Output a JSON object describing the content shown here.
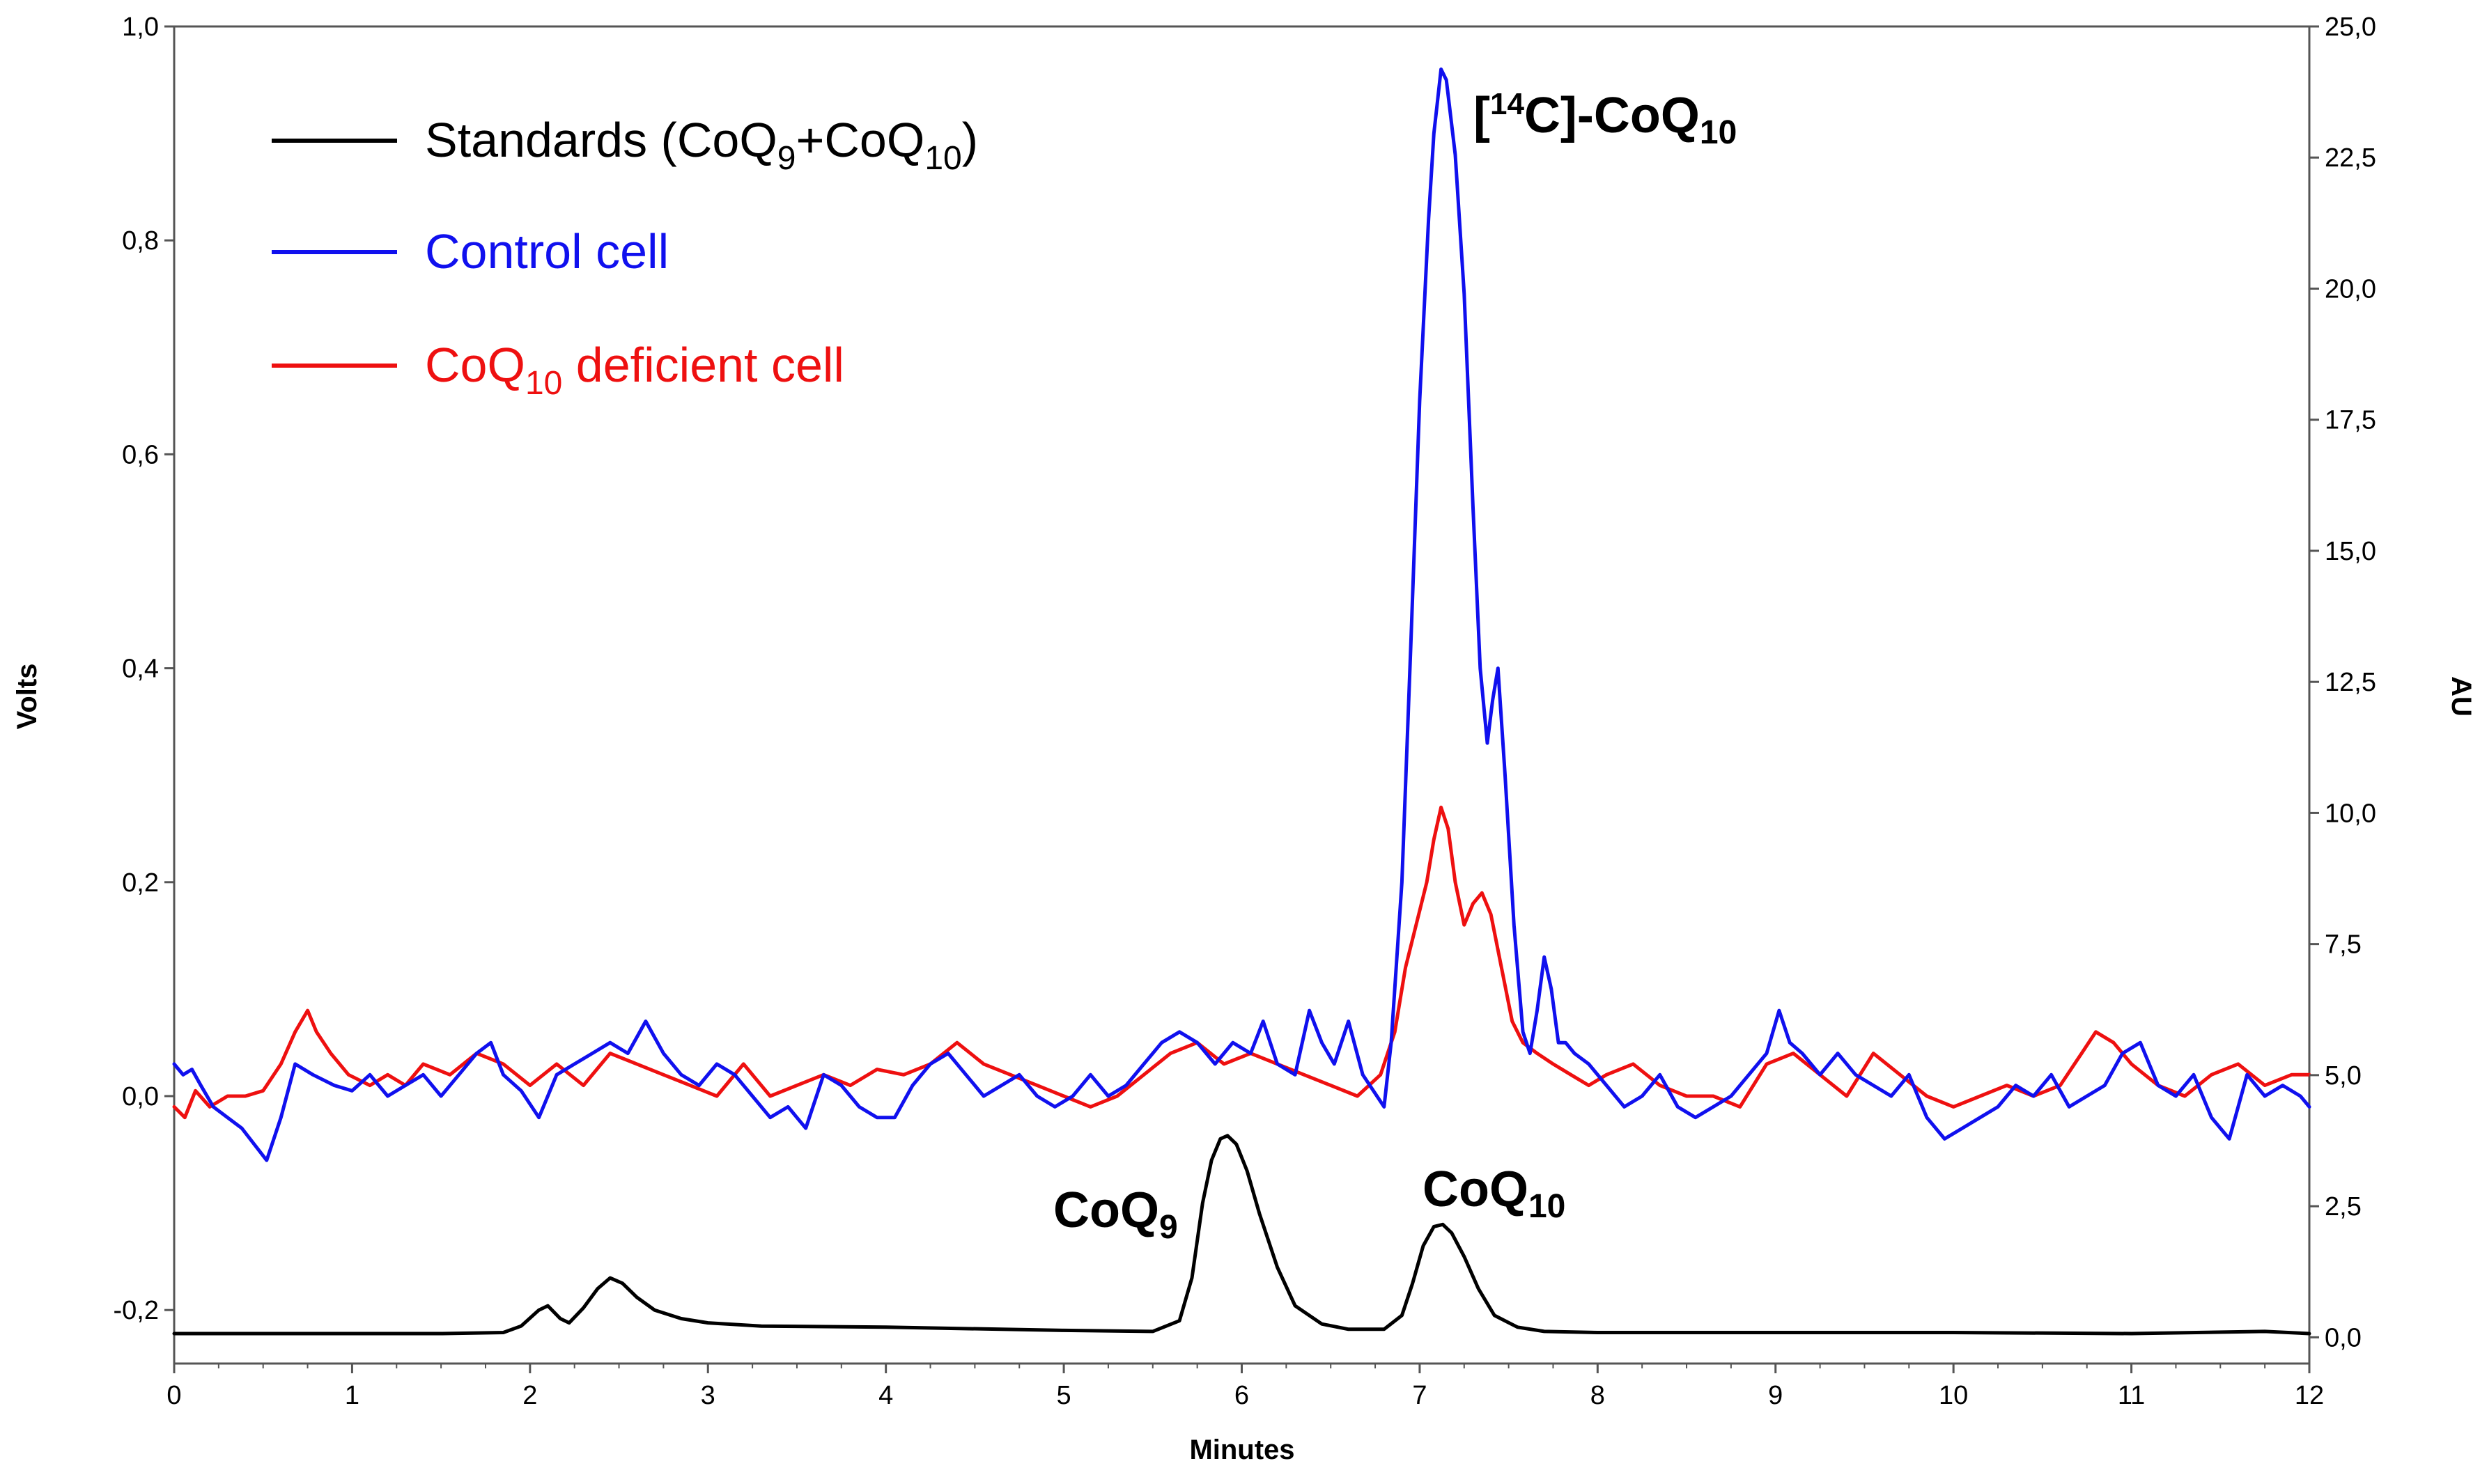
{
  "chart_data": {
    "type": "line",
    "title": "",
    "xlabel": "Minutes",
    "ylabel_left": "Volts",
    "ylabel_right": "AU",
    "xlim": [
      0,
      12
    ],
    "ylim_left": [
      -0.25,
      1.0
    ],
    "ylim_right": [
      -0.5,
      25.0
    ],
    "grid": false,
    "legend_placement": "top-left",
    "x_ticks": [
      "0",
      "1",
      "2",
      "3",
      "4",
      "5",
      "6",
      "7",
      "8",
      "9",
      "10",
      "11",
      "12"
    ],
    "y_left_ticks": [
      "1,0",
      "0,8",
      "0,6",
      "0,4",
      "0,2",
      "0,0",
      "-0,2"
    ],
    "y_left_tick_values": [
      1.0,
      0.8,
      0.6,
      0.4,
      0.2,
      0.0,
      -0.2
    ],
    "y_right_ticks": [
      "25,0",
      "22,5",
      "20,0",
      "17,5",
      "15,0",
      "12,5",
      "10,0",
      "7,5",
      "5,0",
      "2,5",
      "0,0"
    ],
    "y_right_tick_values": [
      25.0,
      22.5,
      20.0,
      17.5,
      15.0,
      12.5,
      10.0,
      7.5,
      5.0,
      2.5,
      0.0
    ],
    "legend": [
      {
        "id": "standards",
        "name": "Standards (CoQ",
        "sub1": "9",
        "mid": "+CoQ",
        "sub2": "10",
        "end": ")",
        "color": "#000000"
      },
      {
        "id": "control",
        "name": "Control cell",
        "color": "#1010ee"
      },
      {
        "id": "deficient",
        "name": "CoQ",
        "sub1": "10",
        "end": " deficient cell",
        "color": "#ee1010"
      }
    ],
    "annotations": {
      "c14": {
        "pre": "[",
        "sup": "14",
        "mid": "C]-CoQ",
        "sub": "10"
      },
      "coq9": {
        "text": "CoQ",
        "sub": "9"
      },
      "coq10": {
        "text": "CoQ",
        "sub": "10"
      }
    },
    "series": [
      {
        "name": "Standards (CoQ9+CoQ10)",
        "axis": "left",
        "color": "#000000",
        "x": [
          0.0,
          0.5,
          1.0,
          1.5,
          1.85,
          1.95,
          2.05,
          2.1,
          2.17,
          2.22,
          2.3,
          2.38,
          2.45,
          2.52,
          2.6,
          2.7,
          2.85,
          3.0,
          3.3,
          4.0,
          5.0,
          5.5,
          5.65,
          5.72,
          5.78,
          5.83,
          5.88,
          5.92,
          5.97,
          6.03,
          6.1,
          6.2,
          6.3,
          6.45,
          6.6,
          6.8,
          6.9,
          6.96,
          7.02,
          7.08,
          7.13,
          7.18,
          7.25,
          7.33,
          7.42,
          7.55,
          7.7,
          8.0,
          9.0,
          10.0,
          11.0,
          11.75,
          12.0
        ],
        "y": [
          -0.222,
          -0.222,
          -0.222,
          -0.222,
          -0.221,
          -0.215,
          -0.2,
          -0.196,
          -0.208,
          -0.212,
          -0.198,
          -0.18,
          -0.17,
          -0.175,
          -0.188,
          -0.2,
          -0.208,
          -0.212,
          -0.215,
          -0.216,
          -0.219,
          -0.22,
          -0.21,
          -0.17,
          -0.1,
          -0.06,
          -0.04,
          -0.037,
          -0.045,
          -0.07,
          -0.11,
          -0.16,
          -0.196,
          -0.213,
          -0.218,
          -0.218,
          -0.205,
          -0.175,
          -0.14,
          -0.122,
          -0.12,
          -0.128,
          -0.15,
          -0.18,
          -0.205,
          -0.216,
          -0.22,
          -0.221,
          -0.221,
          -0.221,
          -0.222,
          -0.22,
          -0.222
        ]
      },
      {
        "name": "Control cell",
        "axis": "left",
        "color": "#1010ee",
        "x": [
          0.0,
          0.05,
          0.1,
          0.15,
          0.22,
          0.3,
          0.38,
          0.45,
          0.52,
          0.6,
          0.68,
          0.78,
          0.9,
          1.0,
          1.1,
          1.2,
          1.3,
          1.4,
          1.5,
          1.6,
          1.7,
          1.78,
          1.85,
          1.95,
          2.05,
          2.15,
          2.25,
          2.35,
          2.45,
          2.55,
          2.65,
          2.75,
          2.85,
          2.95,
          3.05,
          3.15,
          3.25,
          3.35,
          3.45,
          3.55,
          3.65,
          3.75,
          3.85,
          3.95,
          4.05,
          4.15,
          4.25,
          4.35,
          4.45,
          4.55,
          4.65,
          4.75,
          4.85,
          4.95,
          5.05,
          5.15,
          5.25,
          5.35,
          5.45,
          5.55,
          5.65,
          5.75,
          5.85,
          5.95,
          6.05,
          6.12,
          6.2,
          6.3,
          6.38,
          6.45,
          6.52,
          6.6,
          6.68,
          6.76,
          6.8,
          6.84,
          6.9,
          6.95,
          7.0,
          7.05,
          7.08,
          7.1,
          7.12,
          7.15,
          7.2,
          7.25,
          7.3,
          7.34,
          7.38,
          7.41,
          7.44,
          7.48,
          7.53,
          7.58,
          7.62,
          7.66,
          7.7,
          7.74,
          7.78,
          7.82,
          7.87,
          7.95,
          8.05,
          8.15,
          8.25,
          8.35,
          8.45,
          8.55,
          8.65,
          8.75,
          8.85,
          8.95,
          9.02,
          9.08,
          9.15,
          9.25,
          9.35,
          9.45,
          9.55,
          9.65,
          9.75,
          9.85,
          9.95,
          10.05,
          10.15,
          10.25,
          10.35,
          10.45,
          10.55,
          10.65,
          10.75,
          10.85,
          10.95,
          11.05,
          11.15,
          11.25,
          11.35,
          11.45,
          11.55,
          11.65,
          11.75,
          11.85,
          11.95,
          12.0
        ],
        "y": [
          0.03,
          0.02,
          0.025,
          0.01,
          -0.01,
          -0.02,
          -0.03,
          -0.045,
          -0.06,
          -0.02,
          0.03,
          0.02,
          0.01,
          0.005,
          0.02,
          0.0,
          0.01,
          0.02,
          0.0,
          0.02,
          0.04,
          0.05,
          0.02,
          0.005,
          -0.02,
          0.02,
          0.03,
          0.04,
          0.05,
          0.04,
          0.07,
          0.04,
          0.02,
          0.01,
          0.03,
          0.02,
          0.0,
          -0.02,
          -0.01,
          -0.03,
          0.02,
          0.01,
          -0.01,
          -0.02,
          -0.02,
          0.01,
          0.03,
          0.04,
          0.02,
          0.0,
          0.01,
          0.02,
          0.0,
          -0.01,
          0.0,
          0.02,
          0.0,
          0.01,
          0.03,
          0.05,
          0.06,
          0.05,
          0.03,
          0.05,
          0.04,
          0.07,
          0.03,
          0.02,
          0.08,
          0.05,
          0.03,
          0.07,
          0.02,
          0.0,
          -0.01,
          0.05,
          0.2,
          0.42,
          0.65,
          0.82,
          0.9,
          0.93,
          0.96,
          0.95,
          0.88,
          0.75,
          0.55,
          0.4,
          0.33,
          0.37,
          0.4,
          0.3,
          0.16,
          0.06,
          0.04,
          0.08,
          0.13,
          0.1,
          0.05,
          0.05,
          0.04,
          0.03,
          0.01,
          -0.01,
          0.0,
          0.02,
          -0.01,
          -0.02,
          -0.01,
          0.0,
          0.02,
          0.04,
          0.08,
          0.05,
          0.04,
          0.02,
          0.04,
          0.02,
          0.01,
          0.0,
          0.02,
          -0.02,
          -0.04,
          -0.03,
          -0.02,
          -0.01,
          0.01,
          0.0,
          0.02,
          -0.01,
          0.0,
          0.01,
          0.04,
          0.05,
          0.01,
          0.0,
          0.02,
          -0.02,
          -0.04,
          0.02,
          0.0,
          0.01,
          0.0,
          -0.01
        ]
      },
      {
        "name": "CoQ10 deficient cell",
        "axis": "left",
        "color": "#ee1010",
        "x": [
          0.0,
          0.06,
          0.12,
          0.2,
          0.3,
          0.4,
          0.5,
          0.6,
          0.68,
          0.75,
          0.8,
          0.88,
          0.98,
          1.1,
          1.2,
          1.3,
          1.4,
          1.55,
          1.7,
          1.85,
          2.0,
          2.15,
          2.3,
          2.45,
          2.6,
          2.75,
          2.9,
          3.05,
          3.2,
          3.35,
          3.5,
          3.65,
          3.8,
          3.95,
          4.1,
          4.25,
          4.4,
          4.55,
          4.7,
          4.85,
          5.0,
          5.15,
          5.3,
          5.45,
          5.6,
          5.75,
          5.9,
          6.05,
          6.2,
          6.35,
          6.5,
          6.65,
          6.78,
          6.86,
          6.92,
          6.98,
          7.04,
          7.08,
          7.12,
          7.16,
          7.2,
          7.25,
          7.3,
          7.35,
          7.4,
          7.46,
          7.52,
          7.58,
          7.66,
          7.75,
          7.85,
          7.95,
          8.05,
          8.2,
          8.35,
          8.5,
          8.65,
          8.8,
          8.95,
          9.1,
          9.25,
          9.4,
          9.55,
          9.7,
          9.85,
          10.0,
          10.15,
          10.3,
          10.45,
          10.6,
          10.72,
          10.8,
          10.9,
          11.0,
          11.15,
          11.3,
          11.45,
          11.6,
          11.75,
          11.9,
          12.0
        ],
        "y": [
          -0.01,
          -0.02,
          0.005,
          -0.01,
          0.0,
          0.0,
          0.005,
          0.03,
          0.06,
          0.08,
          0.06,
          0.04,
          0.02,
          0.01,
          0.02,
          0.01,
          0.03,
          0.02,
          0.04,
          0.03,
          0.01,
          0.03,
          0.01,
          0.04,
          0.03,
          0.02,
          0.01,
          0.0,
          0.03,
          0.0,
          0.01,
          0.02,
          0.01,
          0.025,
          0.02,
          0.03,
          0.05,
          0.03,
          0.02,
          0.01,
          0.0,
          -0.01,
          0.0,
          0.02,
          0.04,
          0.05,
          0.03,
          0.04,
          0.03,
          0.02,
          0.01,
          0.0,
          0.02,
          0.06,
          0.12,
          0.16,
          0.2,
          0.24,
          0.27,
          0.25,
          0.2,
          0.16,
          0.18,
          0.19,
          0.17,
          0.12,
          0.07,
          0.05,
          0.04,
          0.03,
          0.02,
          0.01,
          0.02,
          0.03,
          0.01,
          0.0,
          0.0,
          -0.01,
          0.03,
          0.04,
          0.02,
          0.0,
          0.04,
          0.02,
          0.0,
          -0.01,
          0.0,
          0.01,
          0.0,
          0.01,
          0.04,
          0.06,
          0.05,
          0.03,
          0.01,
          0.0,
          0.02,
          0.03,
          0.01,
          0.02,
          0.02
        ]
      }
    ]
  }
}
